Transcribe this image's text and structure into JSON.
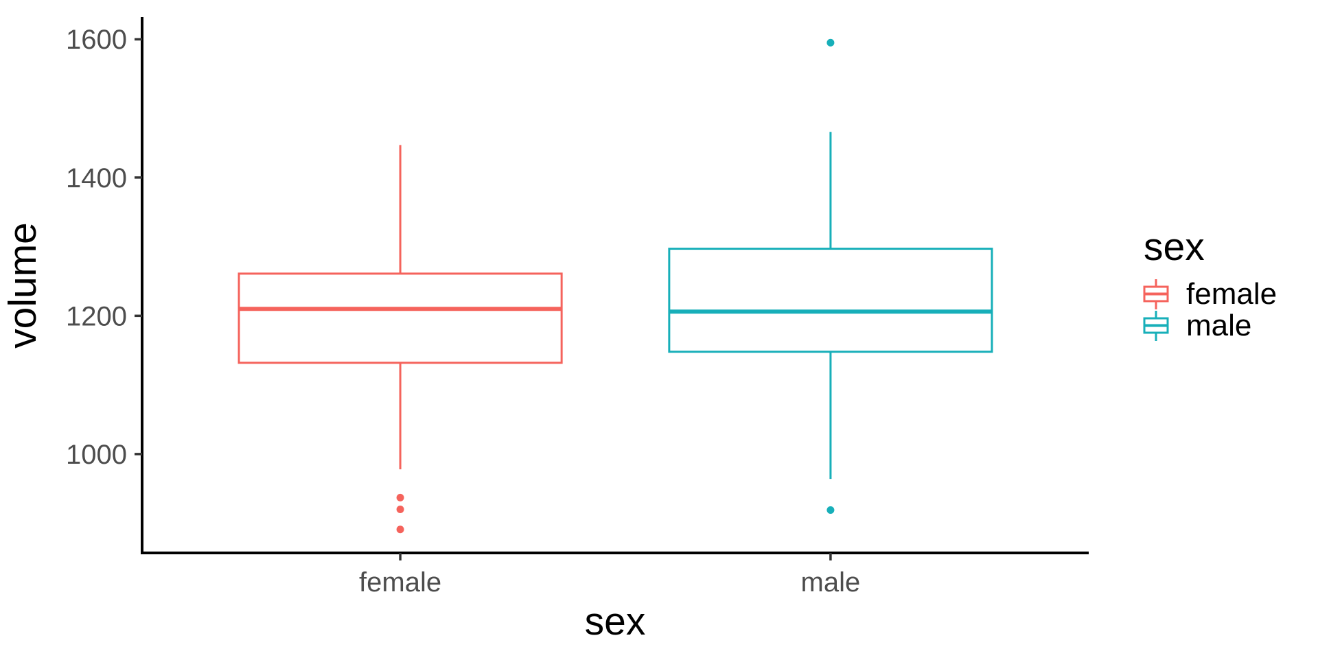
{
  "chart_data": {
    "type": "boxplot",
    "title": "",
    "xlabel": "sex",
    "ylabel": "volume",
    "categories": [
      "female",
      "male"
    ],
    "yticks": [
      1000,
      1200,
      1400,
      1600
    ],
    "ylim": [
      857,
      1632
    ],
    "xlim": [
      0.4,
      2.6
    ],
    "box_width": 0.75,
    "grid": false,
    "legend_position": "right",
    "series": [
      {
        "name": "female",
        "color": "#F5635C",
        "lower_whisker": 978,
        "q1": 1132,
        "median": 1210,
        "q3": 1261,
        "upper_whisker": 1447,
        "outliers": [
          937,
          920,
          891
        ]
      },
      {
        "name": "male",
        "color": "#17AFB9",
        "lower_whisker": 964,
        "q1": 1148,
        "median": 1206,
        "q3": 1297,
        "upper_whisker": 1466,
        "outliers": [
          1595,
          919
        ]
      }
    ]
  },
  "legend": {
    "title": "sex",
    "items": [
      {
        "label": "female",
        "color": "#F5635C"
      },
      {
        "label": "male",
        "color": "#17AFB9"
      }
    ]
  },
  "axis": {
    "line_color": "#000000",
    "tick_color": "#333333",
    "text_color": "#4D4D4D"
  }
}
